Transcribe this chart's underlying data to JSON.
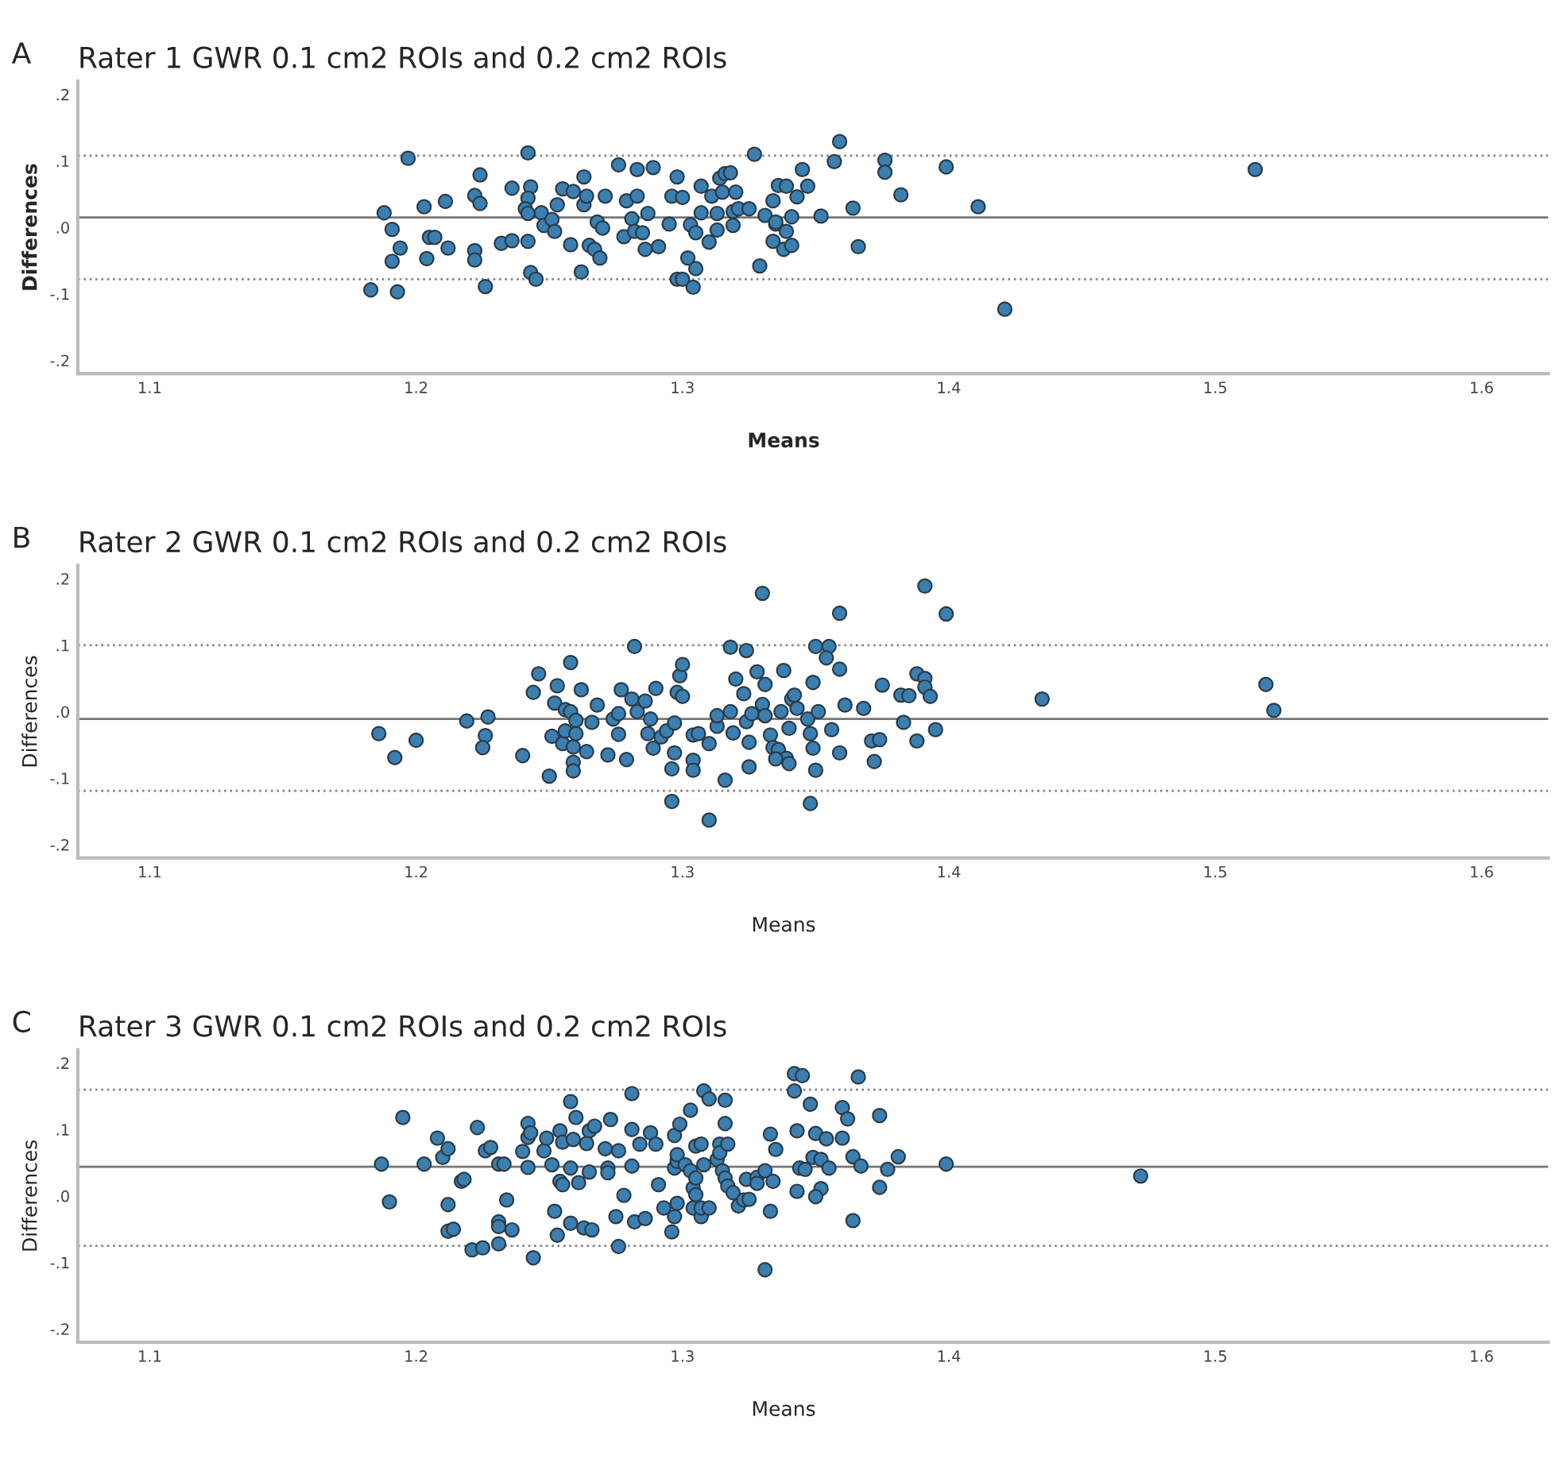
{
  "chart_data": [
    {
      "type": "scatter",
      "title": "Rater 1 GWR 0.1 cm2 ROIs and 0.2 cm2 ROIs",
      "annotations": [
        "A"
      ],
      "xlabel": "Means",
      "ylabel": "Differences",
      "marker": "circle",
      "grid": false,
      "xlim": [
        1.073,
        1.625
      ],
      "ylim": [
        -0.22,
        0.22
      ],
      "xticks": [
        1.1,
        1.2,
        1.3,
        1.4,
        1.5,
        1.6
      ],
      "yticks": [
        {
          "value": -0.2,
          "label": "-.2"
        },
        {
          "value": -0.1,
          "label": "-.1"
        },
        {
          "value": 0,
          "label": ".0"
        },
        {
          "value": 0.1,
          "label": ".1"
        },
        {
          "value": 0.2,
          "label": ".2"
        }
      ],
      "ref_lines": [
        {
          "axis": "y",
          "value": 0.108,
          "line_style": "dotted",
          "color": "#888888"
        },
        {
          "axis": "y",
          "value": 0.015,
          "line_style": "solid",
          "color": "#777777"
        },
        {
          "axis": "y",
          "value": -0.078,
          "line_style": "dotted",
          "color": "#888888"
        }
      ],
      "x": [
        1.183,
        1.188,
        1.191,
        1.191,
        1.193,
        1.194,
        1.197,
        1.203,
        1.204,
        1.205,
        1.207,
        1.211,
        1.212,
        1.222,
        1.222,
        1.222,
        1.224,
        1.224,
        1.226,
        1.232,
        1.236,
        1.236,
        1.242,
        1.242,
        1.243,
        1.242,
        1.241,
        1.242,
        1.243,
        1.245,
        1.247,
        1.248,
        1.251,
        1.252,
        1.253,
        1.255,
        1.259,
        1.258,
        1.262,
        1.263,
        1.263,
        1.264,
        1.265,
        1.267,
        1.268,
        1.27,
        1.269,
        1.271,
        1.276,
        1.278,
        1.279,
        1.281,
        1.283,
        1.283,
        1.282,
        1.285,
        1.286,
        1.287,
        1.289,
        1.291,
        1.295,
        1.296,
        1.298,
        1.3,
        1.298,
        1.3,
        1.302,
        1.303,
        1.304,
        1.305,
        1.305,
        1.307,
        1.307,
        1.31,
        1.311,
        1.313,
        1.313,
        1.314,
        1.315,
        1.316,
        1.318,
        1.319,
        1.319,
        1.32,
        1.321,
        1.325,
        1.327,
        1.329,
        1.331,
        1.334,
        1.336,
        1.335,
        1.339,
        1.334,
        1.343,
        1.345,
        1.347,
        1.338,
        1.341,
        1.339,
        1.335,
        1.341,
        1.352,
        1.357,
        1.359,
        1.364,
        1.366,
        1.376,
        1.376,
        1.382,
        1.399,
        1.411,
        1.421,
        1.515
      ],
      "series": [
        {
          "color": "#3a7fb0",
          "values": [
            -0.094,
            0.022,
            -0.003,
            -0.051,
            -0.097,
            -0.031,
            0.104,
            0.031,
            -0.047,
            -0.015,
            -0.015,
            0.039,
            -0.031,
            0.048,
            -0.035,
            -0.049,
            0.079,
            0.036,
            -0.089,
            -0.024,
            -0.02,
            0.059,
            0.112,
            -0.021,
            0.061,
            0.044,
            0.028,
            0.021,
            -0.068,
            -0.078,
            0.022,
            0.003,
            0.012,
            -0.006,
            0.034,
            0.058,
            0.054,
            -0.026,
            -0.067,
            0.076,
            0.034,
            0.047,
            -0.027,
            -0.033,
            0.008,
            -0.001,
            -0.046,
            0.047,
            0.094,
            -0.014,
            0.04,
            0.013,
            0.047,
            0.087,
            -0.006,
            -0.008,
            -0.033,
            0.021,
            0.09,
            -0.029,
            0.005,
            0.047,
            0.076,
            0.045,
            -0.078,
            -0.078,
            -0.046,
            0.004,
            -0.09,
            -0.062,
            -0.008,
            0.022,
            0.062,
            -0.022,
            0.047,
            0.021,
            -0.004,
            0.074,
            0.053,
            0.081,
            0.082,
            0.024,
            0.003,
            0.053,
            0.028,
            0.028,
            0.11,
            -0.058,
            0.018,
            0.04,
            0.063,
            0.005,
            0.062,
            -0.021,
            0.046,
            0.087,
            0.062,
            -0.033,
            -0.027,
            -0.006,
            0.008,
            0.016,
            0.017,
            0.099,
            0.129,
            0.029,
            -0.029,
            0.101,
            0.083,
            0.049,
            0.091,
            0.031,
            -0.123,
            0.087
          ]
        }
      ]
    },
    {
      "type": "scatter",
      "title": "Rater 2 GWR 0.1 cm2 ROIs and 0.2 cm2 ROIs",
      "annotations": [
        "B"
      ],
      "xlabel": "Means",
      "ylabel": "Differences",
      "marker": "circle",
      "grid": false,
      "xlim": [
        1.073,
        1.625
      ],
      "ylim": [
        -0.22,
        0.22
      ],
      "xticks": [
        1.1,
        1.2,
        1.3,
        1.4,
        1.5,
        1.6
      ],
      "yticks": [
        {
          "value": -0.2,
          "label": "-.2"
        },
        {
          "value": -0.1,
          "label": "-.1"
        },
        {
          "value": 0,
          "label": ".0"
        },
        {
          "value": 0.1,
          "label": ".1"
        },
        {
          "value": 0.2,
          "label": ".2"
        }
      ],
      "ref_lines": [
        {
          "axis": "y",
          "value": 0.1,
          "line_style": "dotted",
          "color": "#888888"
        },
        {
          "axis": "y",
          "value": -0.011,
          "line_style": "solid",
          "color": "#777777"
        },
        {
          "axis": "y",
          "value": -0.119,
          "line_style": "dotted",
          "color": "#888888"
        }
      ],
      "x": [
        1.186,
        1.192,
        1.2,
        1.219,
        1.227,
        1.226,
        1.225,
        1.24,
        1.244,
        1.246,
        1.25,
        1.251,
        1.252,
        1.253,
        1.255,
        1.256,
        1.256,
        1.258,
        1.259,
        1.259,
        1.259,
        1.26,
        1.258,
        1.26,
        1.262,
        1.264,
        1.266,
        1.268,
        1.272,
        1.274,
        1.276,
        1.277,
        1.276,
        1.279,
        1.281,
        1.282,
        1.283,
        1.286,
        1.287,
        1.288,
        1.289,
        1.29,
        1.292,
        1.294,
        1.296,
        1.296,
        1.297,
        1.297,
        1.298,
        1.299,
        1.3,
        1.3,
        1.304,
        1.304,
        1.304,
        1.306,
        1.31,
        1.31,
        1.313,
        1.313,
        1.316,
        1.318,
        1.318,
        1.32,
        1.319,
        1.323,
        1.324,
        1.324,
        1.325,
        1.325,
        1.326,
        1.328,
        1.33,
        1.33,
        1.331,
        1.331,
        1.333,
        1.334,
        1.336,
        1.338,
        1.34,
        1.341,
        1.339,
        1.337,
        1.349,
        1.35,
        1.355,
        1.354,
        1.359,
        1.359,
        1.342,
        1.343,
        1.347,
        1.351,
        1.348,
        1.349,
        1.35,
        1.348,
        1.34,
        1.335,
        1.356,
        1.359,
        1.361,
        1.368,
        1.371,
        1.374,
        1.372,
        1.375,
        1.382,
        1.385,
        1.383,
        1.388,
        1.388,
        1.391,
        1.391,
        1.393,
        1.395,
        1.391,
        1.399,
        1.435,
        1.519,
        1.522
      ],
      "series": [
        {
          "color": "#3a7fb0",
          "values": [
            -0.033,
            -0.069,
            -0.043,
            -0.014,
            -0.008,
            -0.036,
            -0.054,
            -0.066,
            0.029,
            0.057,
            -0.097,
            -0.037,
            0.013,
            0.039,
            -0.048,
            -0.029,
            0.003,
            0.074,
            -0.076,
            -0.089,
            -0.053,
            -0.033,
            0.0,
            -0.013,
            0.033,
            -0.06,
            -0.016,
            0.01,
            -0.065,
            -0.011,
            -0.003,
            0.033,
            -0.034,
            -0.072,
            0.019,
            0.098,
            0.0,
            0.016,
            -0.033,
            -0.011,
            -0.055,
            0.035,
            -0.038,
            -0.029,
            -0.135,
            -0.086,
            -0.062,
            -0.017,
            0.029,
            0.054,
            0.071,
            0.023,
            -0.035,
            -0.073,
            -0.088,
            -0.033,
            -0.048,
            -0.163,
            -0.022,
            -0.006,
            -0.103,
            0.097,
            0.0,
            0.049,
            -0.032,
            0.027,
            -0.015,
            0.092,
            -0.046,
            -0.083,
            -0.003,
            0.06,
            0.178,
            0.011,
            0.041,
            -0.006,
            -0.035,
            -0.054,
            -0.057,
            0.062,
            -0.025,
            0.019,
            -0.07,
            0.0,
            0.044,
            0.098,
            0.098,
            0.081,
            0.064,
            0.148,
            0.025,
            0.005,
            -0.011,
            0.0,
            -0.033,
            -0.055,
            -0.088,
            -0.138,
            -0.078,
            -0.071,
            -0.027,
            -0.062,
            0.01,
            0.005,
            -0.044,
            -0.042,
            -0.075,
            0.04,
            0.025,
            0.024,
            -0.016,
            -0.044,
            0.057,
            0.05,
            0.037,
            0.023,
            -0.027,
            0.189,
            0.147,
            0.019,
            0.041,
            0.002
          ]
        }
      ]
    },
    {
      "type": "scatter",
      "title": "Rater 3 GWR 0.1 cm2 ROIs and 0.2 cm2 ROIs",
      "annotations": [
        "C"
      ],
      "xlabel": "Means",
      "ylabel": "Differences",
      "marker": "circle",
      "grid": false,
      "xlim": [
        1.073,
        1.625
      ],
      "ylim": [
        -0.22,
        0.22
      ],
      "xticks": [
        1.1,
        1.2,
        1.3,
        1.4,
        1.5,
        1.6
      ],
      "yticks": [
        {
          "value": -0.2,
          "label": "-.2"
        },
        {
          "value": -0.1,
          "label": "-.1"
        },
        {
          "value": 0,
          "label": ".0"
        },
        {
          "value": 0.1,
          "label": ".1"
        },
        {
          "value": 0.2,
          "label": ".2"
        }
      ],
      "ref_lines": [
        {
          "axis": "y",
          "value": 0.16,
          "line_style": "dotted",
          "color": "#888888"
        },
        {
          "axis": "y",
          "value": 0.044,
          "line_style": "solid",
          "color": "#777777"
        },
        {
          "axis": "y",
          "value": -0.075,
          "line_style": "dotted",
          "color": "#888888"
        }
      ],
      "x": [
        1.187,
        1.19,
        1.195,
        1.203,
        1.208,
        1.21,
        1.212,
        1.212,
        1.212,
        1.214,
        1.217,
        1.218,
        1.221,
        1.223,
        1.225,
        1.226,
        1.228,
        1.231,
        1.231,
        1.231,
        1.231,
        1.233,
        1.234,
        1.236,
        1.24,
        1.242,
        1.242,
        1.242,
        1.244,
        1.243,
        1.248,
        1.249,
        1.251,
        1.252,
        1.253,
        1.254,
        1.254,
        1.255,
        1.255,
        1.258,
        1.258,
        1.258,
        1.26,
        1.259,
        1.261,
        1.263,
        1.265,
        1.264,
        1.265,
        1.266,
        1.267,
        1.271,
        1.272,
        1.273,
        1.272,
        1.275,
        1.276,
        1.276,
        1.278,
        1.281,
        1.281,
        1.281,
        1.282,
        1.284,
        1.286,
        1.288,
        1.29,
        1.291,
        1.293,
        1.296,
        1.297,
        1.298,
        1.297,
        1.297,
        1.298,
        1.298,
        1.299,
        1.301,
        1.303,
        1.303,
        1.304,
        1.305,
        1.305,
        1.304,
        1.307,
        1.307,
        1.305,
        1.307,
        1.308,
        1.308,
        1.31,
        1.31,
        1.313,
        1.314,
        1.314,
        1.315,
        1.316,
        1.316,
        1.316,
        1.317,
        1.317,
        1.319,
        1.321,
        1.323,
        1.324,
        1.325,
        1.328,
        1.328,
        1.331,
        1.331,
        1.333,
        1.333,
        1.335,
        1.334,
        1.342,
        1.342,
        1.343,
        1.343,
        1.344,
        1.345,
        1.348,
        1.35,
        1.354,
        1.36,
        1.362,
        1.36,
        1.366,
        1.374,
        1.349,
        1.352,
        1.346,
        1.355,
        1.364,
        1.367,
        1.377,
        1.381,
        1.399,
        1.352,
        1.35,
        1.374,
        1.364,
        1.472
      ],
      "series": [
        {
          "color": "#3a7fb0",
          "values": [
            0.048,
            -0.009,
            0.118,
            0.048,
            0.087,
            0.058,
            0.071,
            -0.013,
            -0.053,
            -0.05,
            0.022,
            0.025,
            -0.081,
            0.103,
            -0.078,
            0.068,
            0.073,
            -0.072,
            -0.039,
            -0.046,
            0.048,
            0.048,
            -0.006,
            -0.051,
            0.067,
            0.109,
            0.088,
            0.043,
            -0.093,
            0.095,
            0.068,
            0.087,
            0.047,
            -0.023,
            -0.059,
            0.022,
            0.098,
            0.081,
            0.017,
            0.042,
            0.142,
            -0.041,
            0.118,
            0.085,
            0.02,
            -0.048,
            0.098,
            0.079,
            0.036,
            -0.051,
            0.105,
            0.071,
            0.042,
            0.115,
            0.035,
            -0.031,
            0.068,
            -0.076,
            0.001,
            0.154,
            0.1,
            0.045,
            -0.039,
            0.078,
            -0.034,
            0.095,
            0.078,
            0.017,
            -0.018,
            -0.054,
            -0.031,
            -0.011,
            0.042,
            0.091,
            0.052,
            0.062,
            0.108,
            0.047,
            0.129,
            0.038,
            0.012,
            0.002,
            0.027,
            -0.018,
            -0.031,
            -0.018,
            0.075,
            0.078,
            0.158,
            0.047,
            0.146,
            -0.018,
            0.055,
            0.078,
            0.065,
            0.038,
            0.144,
            0.109,
            0.027,
            0.015,
            0.078,
            0.005,
            -0.015,
            -0.006,
            0.025,
            -0.005,
            0.028,
            0.019,
            0.038,
            -0.111,
            -0.023,
            0.093,
            0.07,
            0.022,
            0.184,
            0.158,
            0.098,
            0.007,
            0.042,
            0.181,
            0.138,
            0.094,
            0.086,
            0.133,
            0.116,
            0.087,
            0.179,
            0.121,
            0.058,
            0.055,
            0.04,
            0.042,
            0.059,
            0.045,
            0.04,
            0.059,
            0.048,
            0.011,
            -0.001,
            0.013,
            -0.037,
            0.03
          ]
        }
      ]
    }
  ]
}
